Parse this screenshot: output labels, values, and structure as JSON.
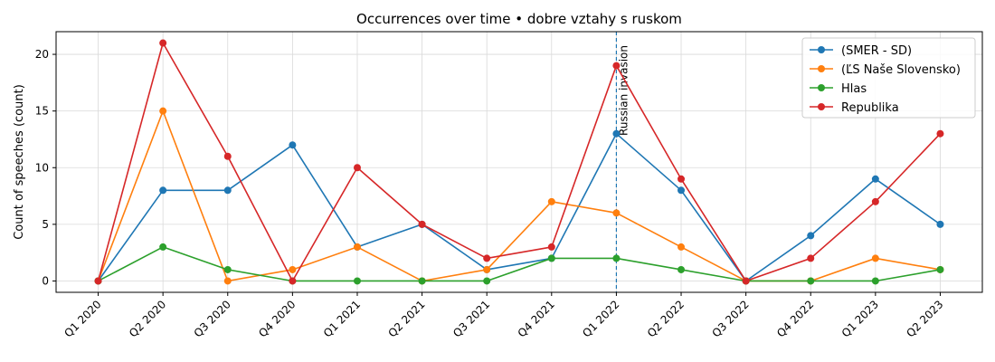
{
  "chart_data": {
    "type": "line",
    "title": "Occurrences over time • dobre vztahy s ruskom",
    "xlabel": "",
    "ylabel": "Count of speeches (count)",
    "categories": [
      "Q1 2020",
      "Q2 2020",
      "Q3 2020",
      "Q4 2020",
      "Q1 2021",
      "Q2 2021",
      "Q3 2021",
      "Q4 2021",
      "Q1 2022",
      "Q2 2022",
      "Q3 2022",
      "Q4 2022",
      "Q1 2023",
      "Q2 2023"
    ],
    "ylim": [
      -1,
      22
    ],
    "yticks": [
      0,
      5,
      10,
      15,
      20
    ],
    "grid": true,
    "legend_position": "top-right",
    "series": [
      {
        "name": "(SMER - SD)",
        "color": "#1f77b4",
        "values": [
          0,
          8,
          8,
          12,
          3,
          5,
          1,
          2,
          13,
          8,
          0,
          4,
          9,
          5
        ]
      },
      {
        "name": "(ĽS Naše Slovensko)",
        "color": "#ff7f0e",
        "values": [
          0,
          15,
          0,
          1,
          3,
          0,
          1,
          7,
          6,
          3,
          0,
          0,
          2,
          1
        ]
      },
      {
        "name": "Hlas",
        "color": "#2ca02c",
        "values": [
          0,
          3,
          1,
          0,
          0,
          0,
          0,
          2,
          2,
          1,
          0,
          0,
          0,
          1
        ]
      },
      {
        "name": "Republika",
        "color": "#d62728",
        "values": [
          0,
          21,
          11,
          0,
          10,
          5,
          2,
          3,
          19,
          9,
          0,
          2,
          7,
          13
        ]
      }
    ],
    "annotations": [
      {
        "category": "Q1 2022",
        "label": "Russian invasion",
        "color": "#1f77b4",
        "style": "dashed-vertical-line"
      }
    ]
  }
}
